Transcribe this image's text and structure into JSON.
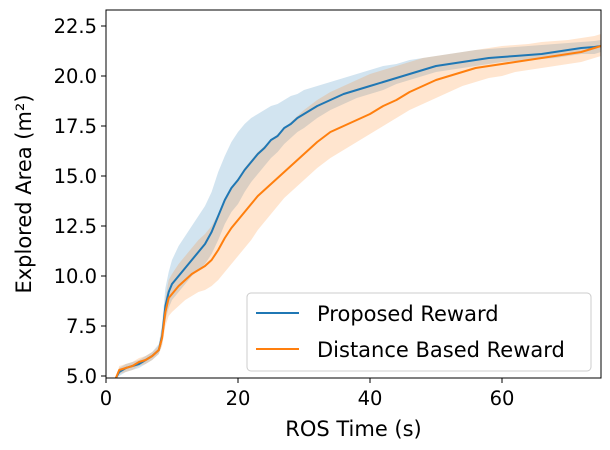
{
  "chart_data": {
    "type": "line",
    "xlabel": "ROS Time (s)",
    "ylabel": "Explored Area (m²)",
    "xlim": [
      0,
      75
    ],
    "ylim": [
      4.9,
      23.3
    ],
    "xticks": [
      0,
      20,
      40,
      60
    ],
    "xtick_labels": [
      "0",
      "20",
      "40",
      "60"
    ],
    "yticks": [
      5.0,
      7.5,
      10.0,
      12.5,
      15.0,
      17.5,
      20.0,
      22.5
    ],
    "ytick_labels": [
      "5.0",
      "7.5",
      "10.0",
      "12.5",
      "15.0",
      "17.5",
      "20.0",
      "22.5"
    ],
    "grid": false,
    "legend_position": "lower-right",
    "series": [
      {
        "name": "Proposed Reward",
        "color": "#1f77b4",
        "band_color": "#1f77b4",
        "x": [
          1.5,
          2,
          3,
          4,
          5,
          6,
          7,
          8,
          8.5,
          9,
          9.5,
          10,
          11,
          12,
          13,
          14,
          15,
          16,
          17,
          18,
          19,
          20,
          21,
          22,
          23,
          24,
          25,
          26,
          27,
          28,
          29,
          30,
          32,
          34,
          36,
          38,
          40,
          42,
          44,
          46,
          48,
          50,
          52,
          54,
          56,
          58,
          60,
          62,
          64,
          66,
          68,
          70,
          72,
          74,
          75
        ],
        "y": [
          4.9,
          5.2,
          5.4,
          5.5,
          5.6,
          5.8,
          6.0,
          6.3,
          7.0,
          8.5,
          9.2,
          9.6,
          10.0,
          10.4,
          10.8,
          11.2,
          11.6,
          12.2,
          13.0,
          13.8,
          14.4,
          14.8,
          15.3,
          15.7,
          16.1,
          16.4,
          16.8,
          17.0,
          17.4,
          17.6,
          17.9,
          18.1,
          18.5,
          18.8,
          19.1,
          19.3,
          19.5,
          19.7,
          19.9,
          20.1,
          20.3,
          20.5,
          20.6,
          20.7,
          20.8,
          20.9,
          20.95,
          21.0,
          21.05,
          21.1,
          21.2,
          21.3,
          21.4,
          21.45,
          21.5
        ],
        "lower": [
          4.9,
          5.0,
          5.2,
          5.3,
          5.4,
          5.6,
          5.8,
          6.1,
          6.6,
          7.8,
          8.4,
          8.8,
          9.2,
          9.6,
          10.0,
          10.3,
          10.6,
          11.1,
          11.8,
          12.6,
          13.2,
          13.6,
          14.2,
          14.7,
          15.1,
          15.5,
          15.9,
          16.2,
          16.6,
          16.9,
          17.2,
          17.4,
          17.9,
          18.3,
          18.6,
          18.9,
          19.1,
          19.3,
          19.6,
          19.8,
          20.0,
          20.2,
          20.3,
          20.4,
          20.5,
          20.6,
          20.7,
          20.75,
          20.8,
          20.85,
          20.9,
          21.0,
          21.1,
          21.1,
          21.2
        ],
        "upper": [
          4.9,
          5.4,
          5.6,
          5.7,
          5.8,
          6.0,
          6.2,
          6.6,
          7.6,
          9.4,
          10.2,
          10.8,
          11.5,
          12.0,
          12.5,
          13.0,
          13.5,
          14.2,
          15.2,
          16.0,
          16.7,
          17.2,
          17.6,
          17.9,
          18.1,
          18.3,
          18.5,
          18.6,
          18.8,
          19.0,
          19.1,
          19.3,
          19.5,
          19.7,
          19.9,
          20.1,
          20.3,
          20.5,
          20.6,
          20.8,
          20.9,
          21.0,
          21.1,
          21.2,
          21.3,
          21.35,
          21.4,
          21.45,
          21.5,
          21.55,
          21.6,
          21.65,
          21.7,
          21.75,
          21.8
        ]
      },
      {
        "name": "Distance Based Reward",
        "color": "#ff7f0e",
        "band_color": "#ff7f0e",
        "x": [
          1.5,
          2,
          3,
          4,
          5,
          6,
          7,
          8,
          8.5,
          9,
          9.5,
          10,
          11,
          12,
          13,
          14,
          15,
          16,
          17,
          18,
          19,
          20,
          21,
          22,
          23,
          24,
          25,
          26,
          27,
          28,
          29,
          30,
          32,
          34,
          36,
          38,
          40,
          42,
          44,
          46,
          48,
          50,
          52,
          54,
          56,
          58,
          60,
          62,
          64,
          66,
          68,
          70,
          72,
          74,
          75
        ],
        "y": [
          4.9,
          5.3,
          5.4,
          5.5,
          5.7,
          5.8,
          6.0,
          6.3,
          6.9,
          8.2,
          8.9,
          9.1,
          9.5,
          9.8,
          10.1,
          10.3,
          10.5,
          10.8,
          11.3,
          11.9,
          12.4,
          12.8,
          13.2,
          13.6,
          14.0,
          14.3,
          14.6,
          14.9,
          15.2,
          15.5,
          15.8,
          16.1,
          16.7,
          17.2,
          17.5,
          17.8,
          18.1,
          18.5,
          18.8,
          19.2,
          19.5,
          19.8,
          20.0,
          20.2,
          20.4,
          20.5,
          20.6,
          20.7,
          20.8,
          20.9,
          21.0,
          21.1,
          21.2,
          21.4,
          21.5
        ],
        "lower": [
          4.9,
          5.1,
          5.2,
          5.3,
          5.5,
          5.6,
          5.8,
          6.1,
          6.5,
          7.5,
          8.0,
          8.2,
          8.5,
          8.8,
          9.0,
          9.2,
          9.3,
          9.5,
          9.8,
          10.2,
          10.6,
          11.0,
          11.4,
          11.8,
          12.3,
          12.7,
          13.1,
          13.5,
          13.9,
          14.2,
          14.5,
          14.8,
          15.4,
          15.9,
          16.3,
          16.7,
          17.1,
          17.5,
          17.9,
          18.3,
          18.6,
          18.9,
          19.2,
          19.5,
          19.7,
          19.9,
          20.0,
          20.2,
          20.3,
          20.4,
          20.5,
          20.6,
          20.7,
          20.9,
          21.0
        ],
        "upper": [
          4.9,
          5.5,
          5.6,
          5.7,
          5.9,
          6.0,
          6.2,
          6.5,
          7.4,
          8.9,
          9.8,
          10.1,
          10.6,
          11.0,
          11.4,
          11.8,
          12.1,
          12.5,
          13.1,
          13.8,
          14.4,
          14.9,
          15.4,
          15.8,
          16.2,
          16.5,
          16.8,
          17.1,
          17.4,
          17.7,
          18.0,
          18.3,
          18.8,
          19.2,
          19.5,
          19.8,
          20.1,
          20.3,
          20.5,
          20.7,
          20.9,
          21.0,
          21.1,
          21.2,
          21.3,
          21.4,
          21.5,
          21.55,
          21.6,
          21.7,
          21.75,
          21.8,
          21.9,
          22.0,
          22.1
        ]
      }
    ]
  }
}
